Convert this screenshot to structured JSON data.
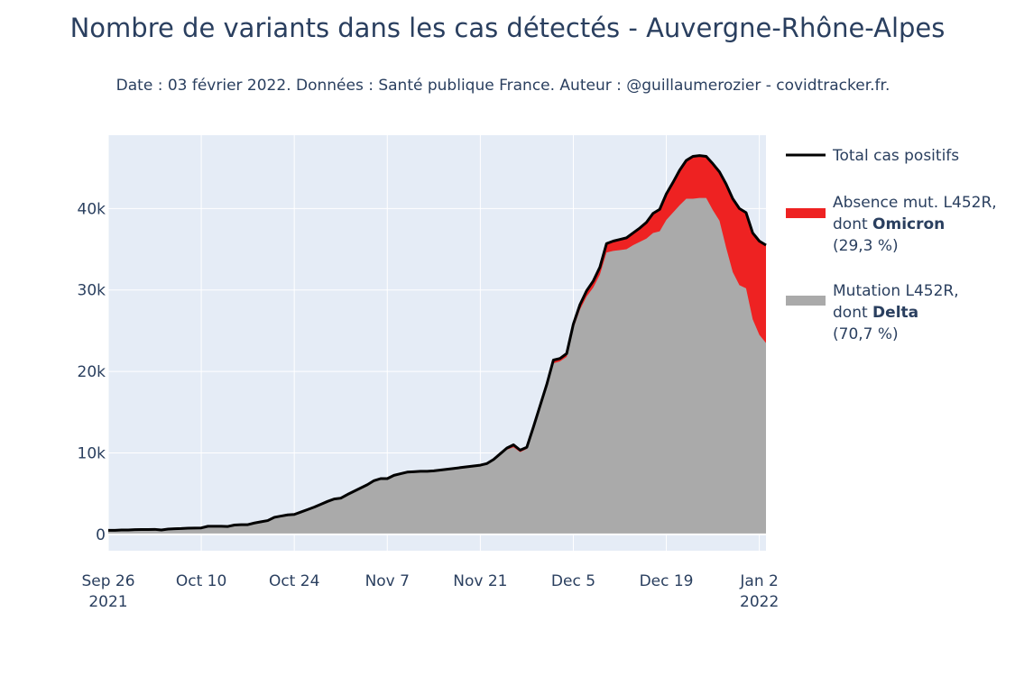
{
  "chart_data": {
    "type": "area",
    "title": "Nombre de variants dans les cas détectés - Auvergne-Rhône-Alpes",
    "subtitle": "Date : 03 février 2022. Données : Santé publique France. Auteur : @guillaumerozier - covidtracker.fr.",
    "xlabel": "",
    "ylabel": "",
    "ylim": [
      -2000,
      49000
    ],
    "xlim": [
      "2021-09-26",
      "2022-01-03"
    ],
    "grid": true,
    "legend_position": "right",
    "x_ticks": [
      {
        "date": "2021-09-26",
        "label": "Sep 26",
        "sublabel": "2021"
      },
      {
        "date": "2021-10-10",
        "label": "Oct 10",
        "sublabel": ""
      },
      {
        "date": "2021-10-24",
        "label": "Oct 24",
        "sublabel": ""
      },
      {
        "date": "2021-11-07",
        "label": "Nov 7",
        "sublabel": ""
      },
      {
        "date": "2021-11-21",
        "label": "Nov 21",
        "sublabel": ""
      },
      {
        "date": "2021-12-05",
        "label": "Dec 5",
        "sublabel": ""
      },
      {
        "date": "2021-12-19",
        "label": "Dec 19",
        "sublabel": ""
      },
      {
        "date": "2022-01-02",
        "label": "Jan 2",
        "sublabel": "2022"
      }
    ],
    "y_ticks": [
      {
        "value": 0,
        "label": "0"
      },
      {
        "value": 10000,
        "label": "10k"
      },
      {
        "value": 20000,
        "label": "20k"
      },
      {
        "value": 30000,
        "label": "30k"
      },
      {
        "value": 40000,
        "label": "40k"
      }
    ],
    "x": [
      "2021-09-26",
      "2021-09-27",
      "2021-09-28",
      "2021-09-29",
      "2021-09-30",
      "2021-10-01",
      "2021-10-02",
      "2021-10-03",
      "2021-10-04",
      "2021-10-05",
      "2021-10-06",
      "2021-10-07",
      "2021-10-08",
      "2021-10-09",
      "2021-10-10",
      "2021-10-11",
      "2021-10-12",
      "2021-10-13",
      "2021-10-14",
      "2021-10-15",
      "2021-10-16",
      "2021-10-17",
      "2021-10-18",
      "2021-10-19",
      "2021-10-20",
      "2021-10-21",
      "2021-10-22",
      "2021-10-23",
      "2021-10-24",
      "2021-10-25",
      "2021-10-26",
      "2021-10-27",
      "2021-10-28",
      "2021-10-29",
      "2021-10-30",
      "2021-10-31",
      "2021-11-01",
      "2021-11-02",
      "2021-11-03",
      "2021-11-04",
      "2021-11-05",
      "2021-11-06",
      "2021-11-07",
      "2021-11-08",
      "2021-11-09",
      "2021-11-10",
      "2021-11-11",
      "2021-11-12",
      "2021-11-13",
      "2021-11-14",
      "2021-11-15",
      "2021-11-16",
      "2021-11-17",
      "2021-11-18",
      "2021-11-19",
      "2021-11-20",
      "2021-11-21",
      "2021-11-22",
      "2021-11-23",
      "2021-11-24",
      "2021-11-25",
      "2021-11-26",
      "2021-11-27",
      "2021-11-28",
      "2021-11-29",
      "2021-11-30",
      "2021-12-01",
      "2021-12-02",
      "2021-12-03",
      "2021-12-04",
      "2021-12-05",
      "2021-12-06",
      "2021-12-07",
      "2021-12-08",
      "2021-12-09",
      "2021-12-10",
      "2021-12-11",
      "2021-12-12",
      "2021-12-13",
      "2021-12-14",
      "2021-12-15",
      "2021-12-16",
      "2021-12-17",
      "2021-12-18",
      "2021-12-19",
      "2021-12-20",
      "2021-12-21",
      "2021-12-22",
      "2021-12-23",
      "2021-12-24",
      "2021-12-25",
      "2021-12-26",
      "2021-12-27",
      "2021-12-28",
      "2021-12-29",
      "2021-12-30",
      "2021-12-31",
      "2022-01-01",
      "2022-01-02",
      "2022-01-03"
    ],
    "series": [
      {
        "name": "Total cas positifs",
        "kind": "line",
        "color": "#000000",
        "values": [
          500,
          500,
          550,
          550,
          580,
          600,
          600,
          620,
          550,
          650,
          700,
          720,
          760,
          780,
          800,
          1000,
          1000,
          1000,
          980,
          1150,
          1200,
          1200,
          1400,
          1550,
          1700,
          2100,
          2250,
          2400,
          2450,
          2750,
          3050,
          3350,
          3700,
          4050,
          4350,
          4450,
          4900,
          5300,
          5700,
          6100,
          6600,
          6850,
          6850,
          7250,
          7450,
          7650,
          7700,
          7750,
          7750,
          7800,
          7900,
          8000,
          8100,
          8200,
          8300,
          8400,
          8500,
          8700,
          9200,
          9900,
          10600,
          11000,
          10350,
          10700,
          13200,
          15800,
          18400,
          21400,
          21600,
          22200,
          25800,
          28200,
          29900,
          31100,
          32800,
          35700,
          36000,
          36200,
          36400,
          37000,
          37600,
          38300,
          39400,
          39900,
          41800,
          43200,
          44700,
          45900,
          46400,
          46500,
          46400,
          45500,
          44500,
          43000,
          41200,
          40000,
          39500,
          37000,
          36000,
          35500
        ]
      },
      {
        "name": "Absence mut. L452R, dont Omicron",
        "legend_lines": [
          "Absence mut. L452R,",
          "dont ",
          "Omicron",
          " (29,3 %)"
        ],
        "kind": "stacked-area",
        "color": "#ee2222",
        "values": [
          0,
          0,
          0,
          0,
          0,
          0,
          0,
          0,
          0,
          0,
          0,
          0,
          0,
          0,
          0,
          0,
          0,
          0,
          0,
          0,
          0,
          0,
          0,
          0,
          0,
          0,
          0,
          0,
          0,
          0,
          0,
          0,
          0,
          0,
          0,
          0,
          0,
          0,
          0,
          0,
          0,
          0,
          0,
          0,
          0,
          0,
          0,
          0,
          0,
          0,
          0,
          0,
          0,
          0,
          0,
          0,
          50,
          50,
          100,
          150,
          200,
          300,
          250,
          200,
          200,
          250,
          300,
          400,
          350,
          400,
          500,
          600,
          700,
          800,
          900,
          1100,
          1200,
          1300,
          1400,
          1500,
          1700,
          2000,
          2400,
          2700,
          3200,
          3700,
          4300,
          4700,
          5200,
          5200,
          5100,
          5700,
          6000,
          7800,
          9000,
          9400,
          9300,
          10600,
          11500,
          12000
        ]
      },
      {
        "name": "Mutation L452R, dont Delta",
        "legend_lines": [
          "Mutation L452R,",
          "dont ",
          "Delta",
          " (70,7 %)"
        ],
        "kind": "stacked-area",
        "color": "#aaaaaa",
        "values": [
          500,
          500,
          550,
          550,
          580,
          600,
          600,
          620,
          550,
          650,
          700,
          720,
          760,
          780,
          800,
          1000,
          1000,
          1000,
          980,
          1150,
          1200,
          1200,
          1400,
          1550,
          1700,
          2100,
          2250,
          2400,
          2450,
          2750,
          3050,
          3350,
          3700,
          4050,
          4350,
          4450,
          4900,
          5300,
          5700,
          6100,
          6600,
          6850,
          6850,
          7250,
          7450,
          7650,
          7700,
          7750,
          7750,
          7800,
          7900,
          8000,
          8100,
          8200,
          8300,
          8400,
          8450,
          8650,
          9100,
          9750,
          10400,
          10700,
          10100,
          10500,
          13000,
          15550,
          18100,
          21000,
          21250,
          21800,
          25300,
          27600,
          29200,
          30300,
          31900,
          34600,
          34800,
          34900,
          35000,
          35500,
          35900,
          36300,
          37000,
          37200,
          38600,
          39500,
          40400,
          41200,
          41200,
          41300,
          41300,
          39800,
          38500,
          35200,
          32200,
          30600,
          30200,
          26400,
          24500,
          23500
        ]
      }
    ]
  }
}
